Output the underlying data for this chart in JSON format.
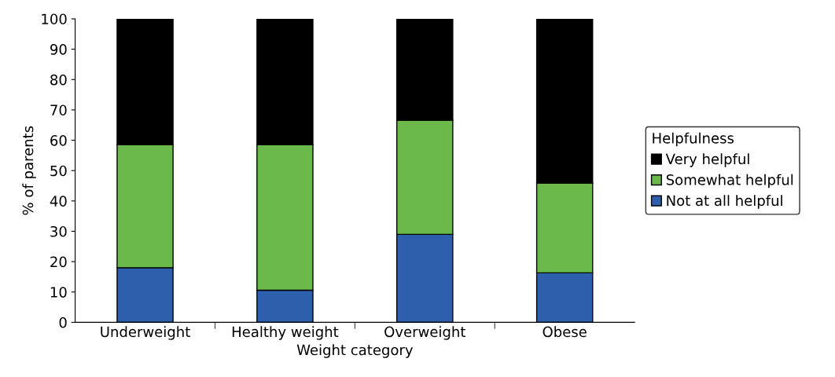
{
  "chart_data": {
    "type": "bar",
    "stacked": true,
    "xlabel": "Weight category",
    "ylabel": "% of parents",
    "legend_title": "Helpfulness",
    "legend": "right",
    "categories": [
      "Underweight",
      "Healthy weight",
      "Overweight",
      "Obese"
    ],
    "series": [
      {
        "name": "Not at all helpful",
        "color": "#2e5fad",
        "values": [
          18,
          10.6,
          29,
          16.3
        ]
      },
      {
        "name": "Somewhat helpful",
        "color": "#6ab94a",
        "values": [
          40.5,
          47.9,
          37.6,
          29.6
        ]
      },
      {
        "name": "Very helpful",
        "color": "#000000",
        "values": [
          41.5,
          41.5,
          33.4,
          54.1
        ]
      }
    ],
    "ylim": [
      0,
      100
    ],
    "yticks": [
      0,
      10,
      20,
      30,
      40,
      50,
      60,
      70,
      80,
      90,
      100
    ],
    "grid": false
  }
}
